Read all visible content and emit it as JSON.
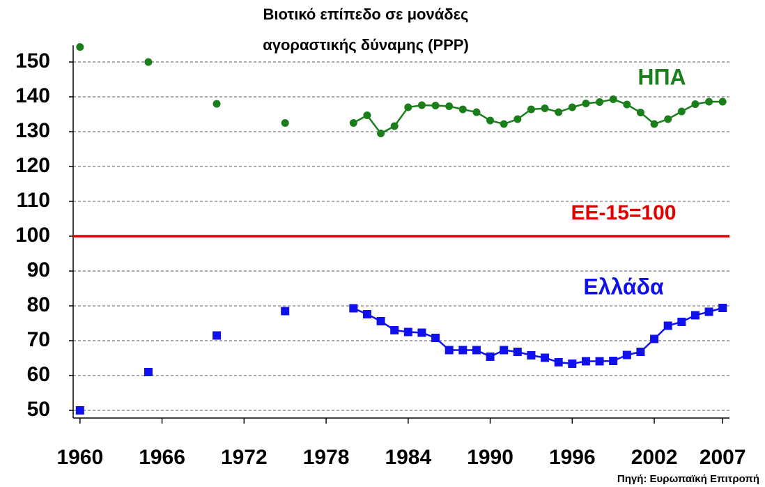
{
  "chart_data": {
    "type": "line",
    "title": [
      "Βιοτικό επίπεδο σε μονάδες",
      "αγοραστικής δύναμης (PPP)"
    ],
    "source": "Πηγή: Ευρωπαϊκή Επιτροπή",
    "x": [
      1960,
      1965,
      1970,
      1975,
      1980,
      1981,
      1982,
      1983,
      1984,
      1985,
      1986,
      1987,
      1988,
      1989,
      1990,
      1991,
      1992,
      1993,
      1994,
      1995,
      1996,
      1997,
      1998,
      1999,
      2000,
      2001,
      2002,
      2003,
      2004,
      2005,
      2006,
      2007
    ],
    "series": [
      {
        "name": "ΗΠΑ",
        "color": "#1a7f1a",
        "marker": "circle",
        "values": [
          154.3,
          150,
          138,
          132.5,
          132.5,
          134.7,
          129.5,
          131.6,
          137,
          137.6,
          137.5,
          137.3,
          136.4,
          135.6,
          133.2,
          132.2,
          133.6,
          136.4,
          136.7,
          135.6,
          137,
          138.1,
          138.5,
          139.3,
          137.8,
          135.5,
          132.2,
          133.6,
          135.8,
          137.9,
          138.6,
          138.6
        ]
      },
      {
        "name": "Ελλάδα",
        "color": "#1010ee",
        "marker": "square",
        "values": [
          50,
          61,
          71.5,
          78.5,
          79.3,
          77.6,
          75.6,
          73,
          72.5,
          72.3,
          70.8,
          67.3,
          67.3,
          67.3,
          65.4,
          67.3,
          66.8,
          65.8,
          65.1,
          63.8,
          63.4,
          64.1,
          64.1,
          64.2,
          65.9,
          66.8,
          70.5,
          74.3,
          75.4,
          77.3,
          78.3,
          79.4
        ]
      }
    ],
    "reference_line": {
      "value": 100,
      "label": "ΕΕ-15=100",
      "color": "#e00000"
    },
    "xlim": [
      1959.5,
      2007.5
    ],
    "xticks": [
      1960,
      1966,
      1972,
      1978,
      1984,
      1990,
      1996,
      2002,
      2007
    ],
    "ylim": [
      47.8,
      154.8
    ],
    "yticks": [
      50,
      60,
      70,
      80,
      90,
      100,
      110,
      120,
      130,
      140,
      150
    ],
    "grid": true
  }
}
